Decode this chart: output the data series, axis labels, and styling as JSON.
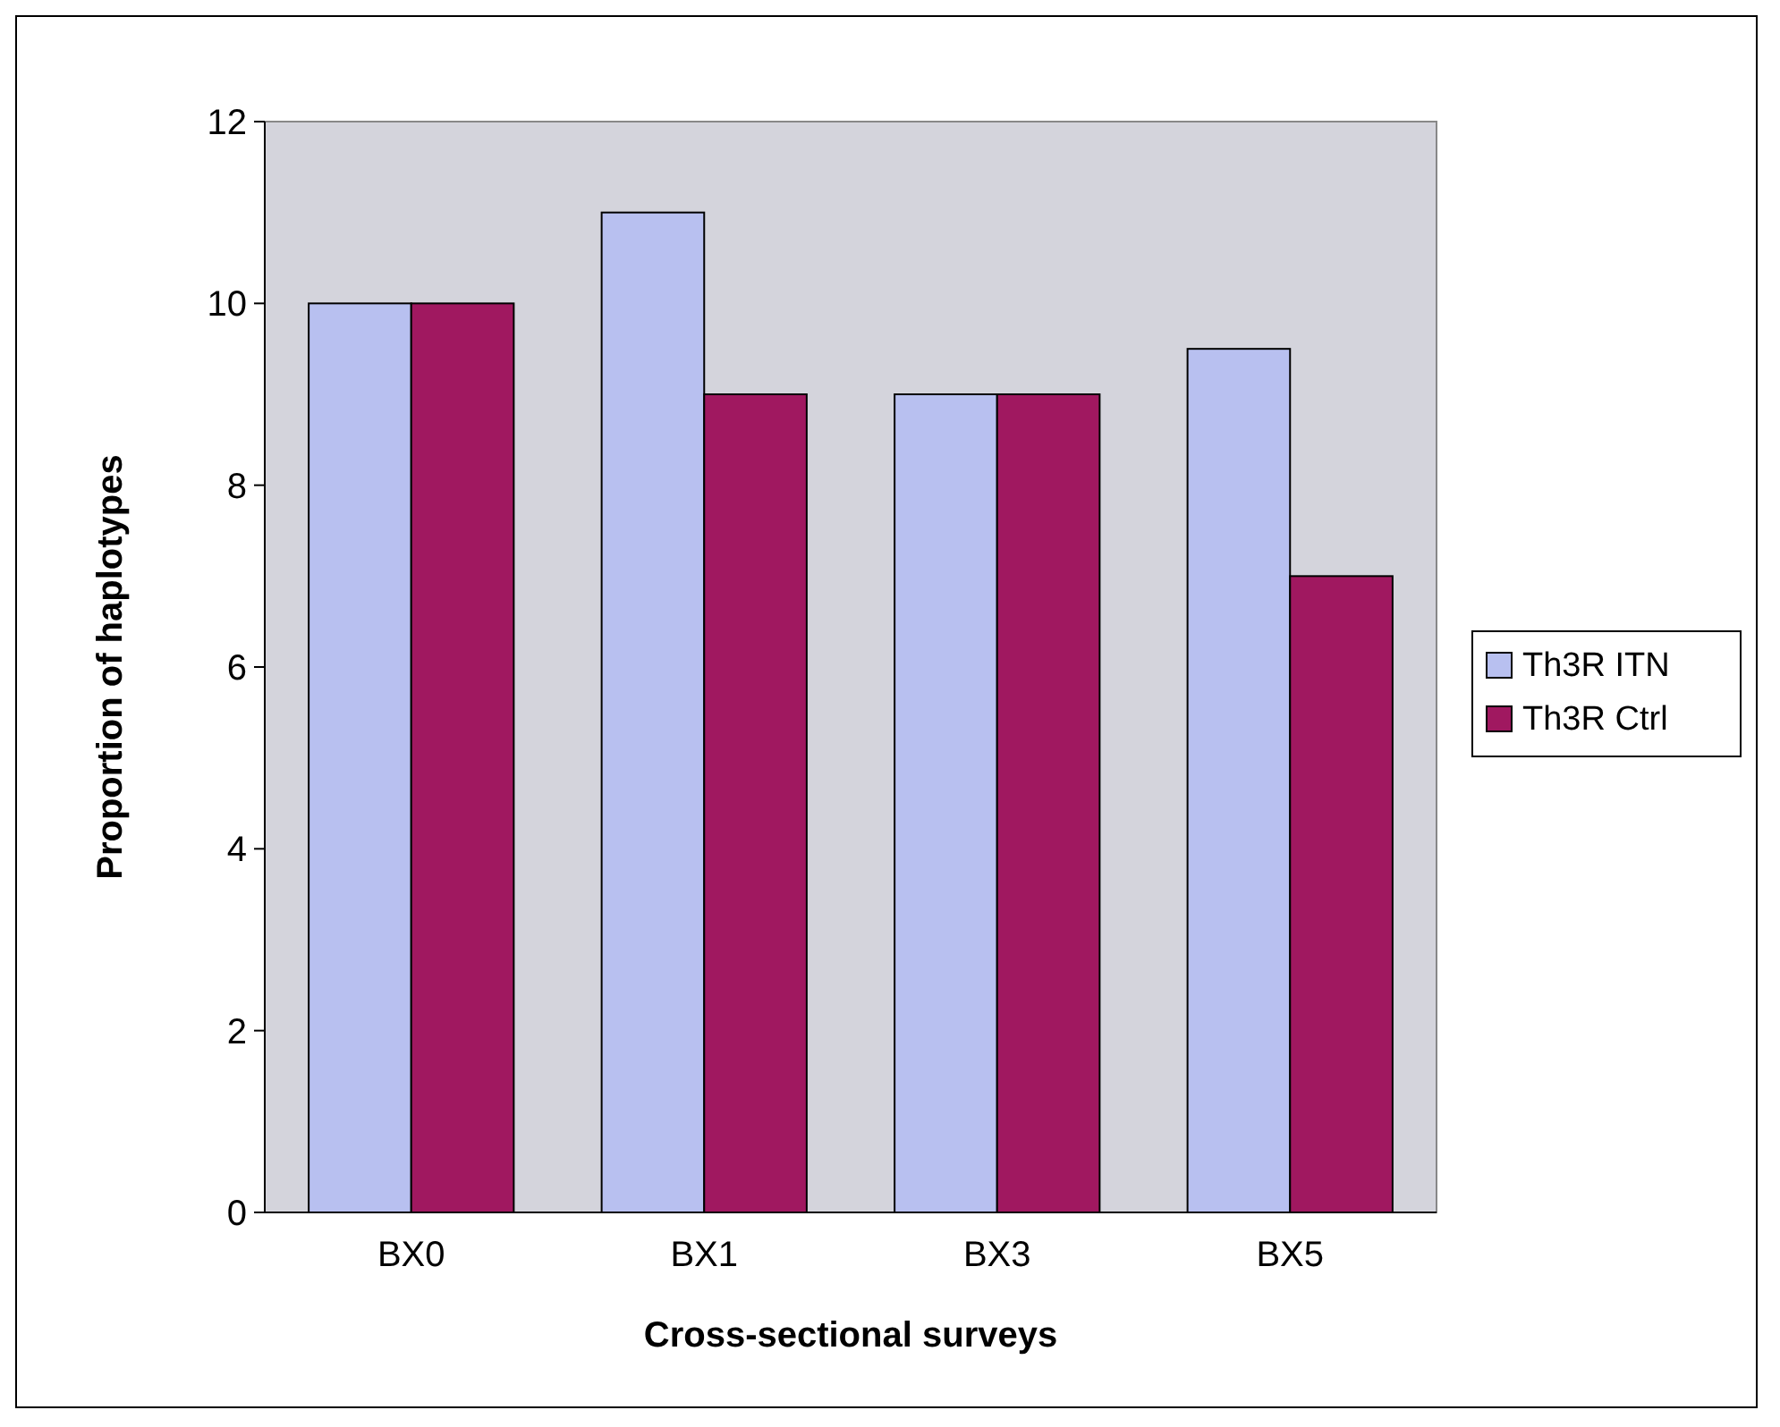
{
  "chart_data": {
    "type": "bar",
    "xlabel": "Cross-sectional surveys",
    "ylabel": "Proportion of haplotypes",
    "categories": [
      "BX0",
      "BX1",
      "BX3",
      "BX5"
    ],
    "series": [
      {
        "name": "Th3R ITN",
        "color": "#b8c0f0",
        "values": [
          10,
          11,
          9,
          9.5
        ]
      },
      {
        "name": "Th3R Ctrl",
        "color": "#a01860",
        "values": [
          10,
          9,
          9,
          7
        ]
      }
    ],
    "ylim": [
      0,
      12
    ],
    "yticks": [
      0,
      2,
      4,
      6,
      8,
      10,
      12
    ],
    "grid": false,
    "legend": "right"
  }
}
